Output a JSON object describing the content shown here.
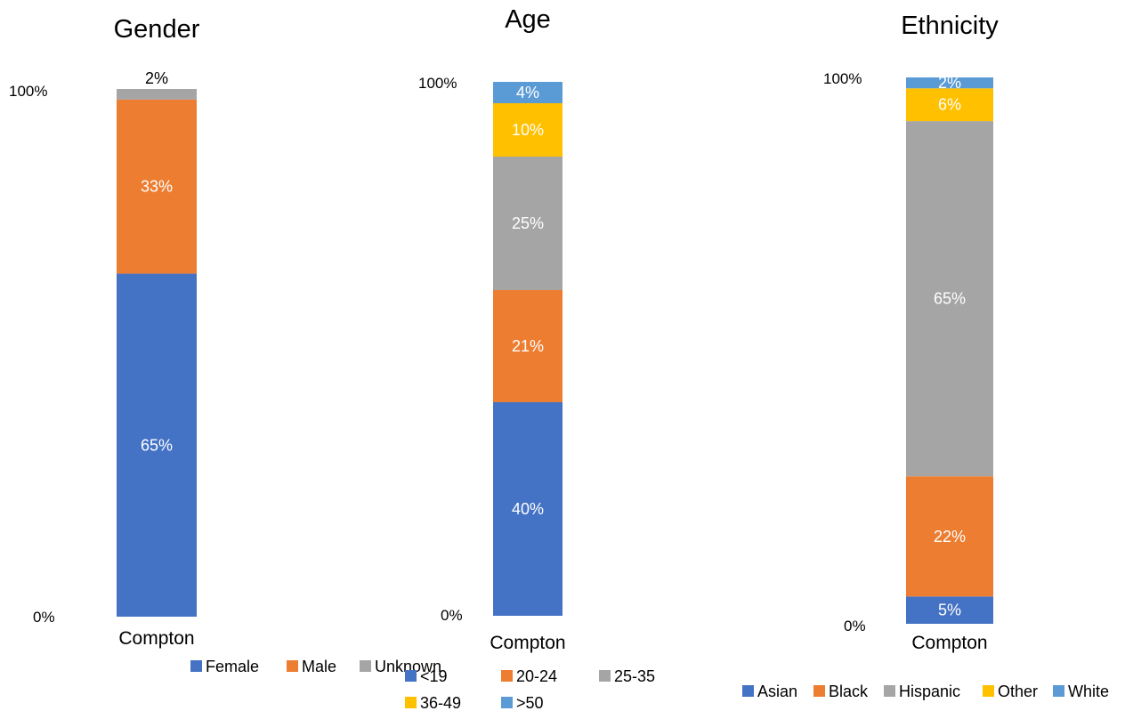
{
  "chart_data": [
    {
      "type": "bar",
      "stacked": true,
      "title": "Gender",
      "categories": [
        "Compton"
      ],
      "ylim": [
        0,
        100
      ],
      "yticks": [
        "0%",
        "100%"
      ],
      "legend_position": "bottom",
      "series": [
        {
          "name": "Female",
          "values": [
            65
          ],
          "label": "65%",
          "color": "#4472C4",
          "label_color": "#ffffff"
        },
        {
          "name": "Male",
          "values": [
            33
          ],
          "label": "33%",
          "color": "#ED7D31",
          "label_color": "#ffffff"
        },
        {
          "name": "Unknown",
          "values": [
            2
          ],
          "label": "2%",
          "color": "#A5A5A5",
          "label_color": "#000000"
        }
      ]
    },
    {
      "type": "bar",
      "stacked": true,
      "title": "Age",
      "categories": [
        "Compton"
      ],
      "ylim": [
        0,
        100
      ],
      "yticks": [
        "0%",
        "100%"
      ],
      "legend_position": "bottom",
      "series": [
        {
          "name": "<19",
          "values": [
            40
          ],
          "label": "40%",
          "color": "#4472C4",
          "label_color": "#ffffff"
        },
        {
          "name": "20-24",
          "values": [
            21
          ],
          "label": "21%",
          "color": "#ED7D31",
          "label_color": "#ffffff"
        },
        {
          "name": "25-35",
          "values": [
            25
          ],
          "label": "25%",
          "color": "#A5A5A5",
          "label_color": "#ffffff"
        },
        {
          "name": "36-49",
          "values": [
            10
          ],
          "label": "10%",
          "color": "#FFC000",
          "label_color": "#ffffff"
        },
        {
          "name": ">50",
          "values": [
            4
          ],
          "label": "4%",
          "color": "#5B9BD5",
          "label_color": "#ffffff"
        }
      ]
    },
    {
      "type": "bar",
      "stacked": true,
      "title": "Ethnicity",
      "categories": [
        "Compton"
      ],
      "ylim": [
        0,
        100
      ],
      "yticks": [
        "0%",
        "100%"
      ],
      "legend_position": "bottom",
      "series": [
        {
          "name": "Asian",
          "values": [
            5
          ],
          "label": "5%",
          "color": "#4472C4",
          "label_color": "#ffffff"
        },
        {
          "name": "Black",
          "values": [
            22
          ],
          "label": "22%",
          "color": "#ED7D31",
          "label_color": "#ffffff"
        },
        {
          "name": "Hispanic",
          "values": [
            65
          ],
          "label": "65%",
          "color": "#A5A5A5",
          "label_color": "#ffffff"
        },
        {
          "name": "Other",
          "values": [
            6
          ],
          "label": "6%",
          "color": "#FFC000",
          "label_color": "#ffffff"
        },
        {
          "name": "White",
          "values": [
            2
          ],
          "label": "2%",
          "color": "#5B9BD5",
          "label_color": "#ffffff"
        }
      ]
    }
  ]
}
